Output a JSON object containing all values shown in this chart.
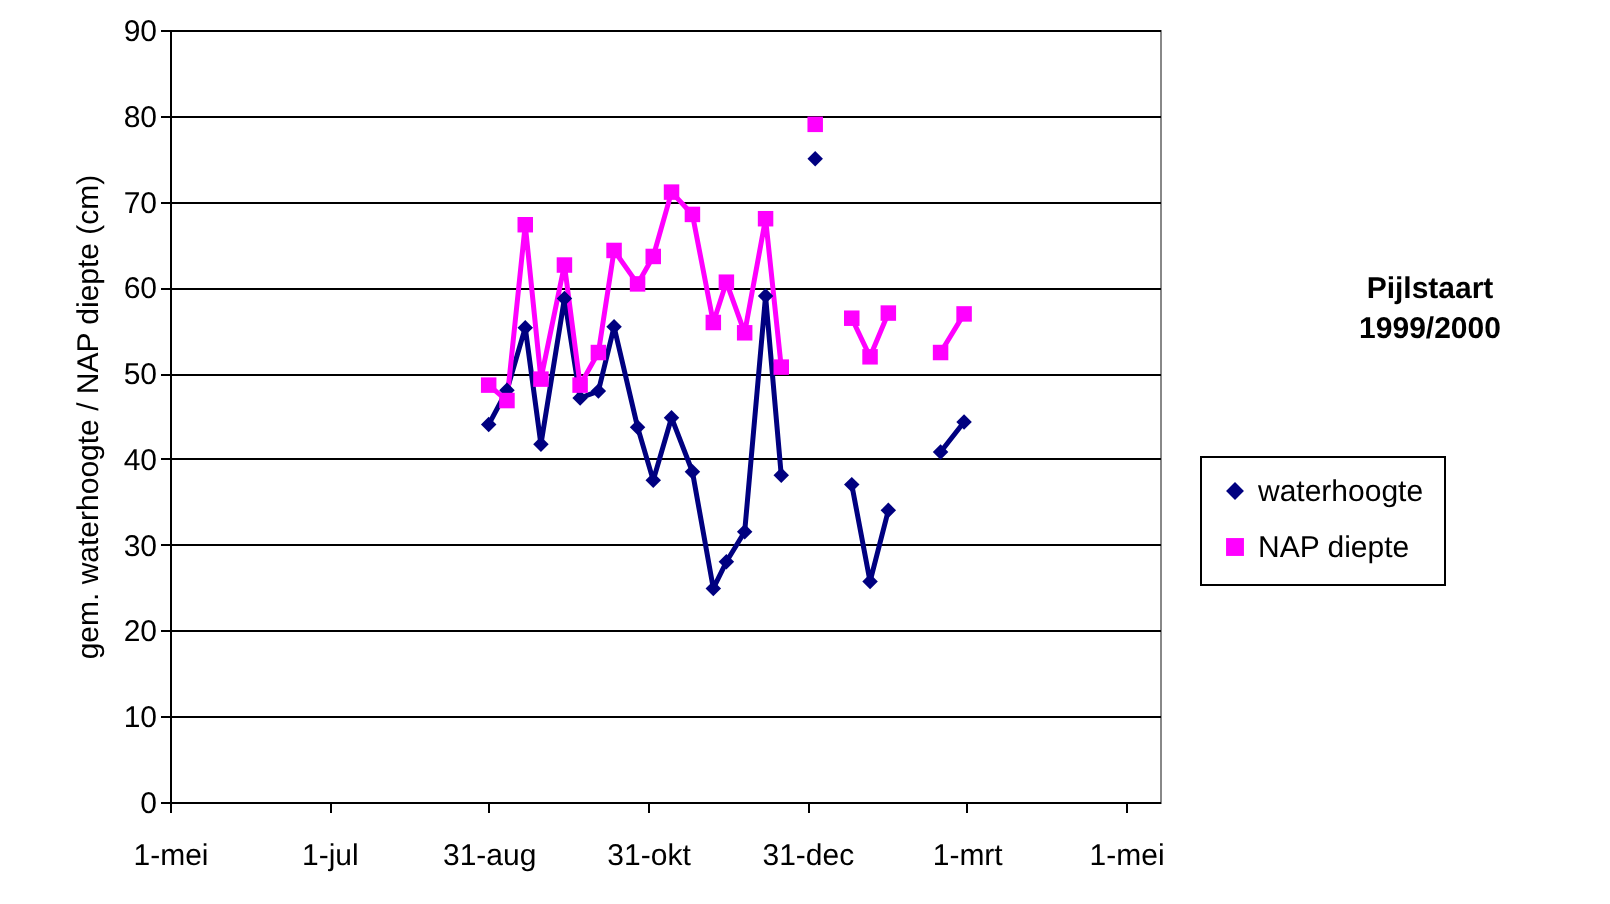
{
  "chart_data": {
    "type": "line",
    "title": "Pijlstaart 1999/2000",
    "ylabel": "gem. waterhoogte / NAP diepte (cm)",
    "x": [
      "1999-08-31",
      "1999-09-07",
      "1999-09-14",
      "1999-09-20",
      "1999-09-29",
      "1999-10-05",
      "1999-10-12",
      "1999-10-18",
      "1999-10-27",
      "1999-11-02",
      "1999-11-09",
      "1999-11-17",
      "1999-11-25",
      "1999-11-30",
      "1999-12-07",
      "1999-12-15",
      "1999-12-21",
      "1999-12-27",
      "2000-01-03",
      "2000-01-10",
      "2000-01-17",
      "2000-01-24",
      "2000-01-31",
      "2000-02-10",
      "2000-02-20",
      "2000-02-29"
    ],
    "series": [
      {
        "name": "waterhoogte",
        "color": "#000080",
        "marker": "diamond",
        "values": [
          44,
          48,
          55.3,
          41.7,
          58.7,
          47.1,
          47.9,
          55.4,
          43.7,
          37.5,
          44.8,
          38.5,
          24.9,
          28,
          31.5,
          59,
          38.1,
          null,
          75,
          null,
          37,
          25.7,
          34,
          null,
          40.8,
          44.3
        ]
      },
      {
        "name": "NAP diepte",
        "color": "#ff00ff",
        "marker": "square",
        "values": [
          48.6,
          46.8,
          67.3,
          49.3,
          62.6,
          48.6,
          52.4,
          64.3,
          60.4,
          63.6,
          71.1,
          68.5,
          55.9,
          60.6,
          54.7,
          68,
          50.7,
          null,
          79,
          null,
          56.4,
          51.9,
          57,
          null,
          52.4,
          56.9
        ]
      }
    ],
    "xlim": [
      "1999-05-01",
      "2000-05-14"
    ],
    "xticks": [
      {
        "value": "1999-05-01",
        "label": "1-mei"
      },
      {
        "value": "1999-07-01",
        "label": "1-jul"
      },
      {
        "value": "1999-08-31",
        "label": "31-aug"
      },
      {
        "value": "1999-10-31",
        "label": "31-okt"
      },
      {
        "value": "1999-12-31",
        "label": "31-dec"
      },
      {
        "value": "2000-03-01",
        "label": "1-mrt"
      },
      {
        "value": "2000-05-01",
        "label": "1-mei"
      }
    ],
    "ylim": [
      0,
      90
    ],
    "yticks": [
      0,
      10,
      20,
      30,
      40,
      50,
      60,
      70,
      80,
      90
    ],
    "grid": "y",
    "legend": "right",
    "line_style": "solid"
  }
}
